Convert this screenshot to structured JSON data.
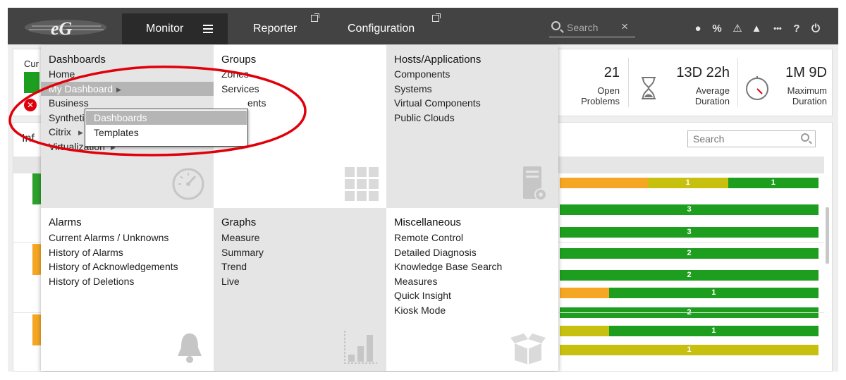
{
  "topbar": {
    "nav": {
      "monitor": "Monitor",
      "reporter": "Reporter",
      "configuration": "Configuration"
    },
    "search_placeholder": "Search",
    "search_clear": "×",
    "icons": [
      "user-icon",
      "link-icon",
      "diagnosis-icon",
      "bell-icon",
      "more-icon",
      "help-icon",
      "power-icon"
    ],
    "icon_glyphs": {
      "user": "●",
      "link": "%",
      "diag": "⚠",
      "bell": "▲",
      "more": "•••",
      "help": "?",
      "power": "⏻"
    }
  },
  "summary": {
    "left_label_partial": "Cur",
    "open_problems": {
      "value": "21",
      "label1": "Open",
      "label2": "Problems"
    },
    "average_duration": {
      "value": "13D 22h",
      "label1": "Average",
      "label2": "Duration"
    },
    "maximum_duration": {
      "value": "1M 9D",
      "label1": "Maximum",
      "label2": "Duration"
    }
  },
  "infra": {
    "title_partial": "Inf",
    "search_placeholder": "Search",
    "rows": [
      {
        "dot_color": "#2ca02c",
        "bar": [
          {
            "color": "#f5a623",
            "pct": 34,
            "label": ""
          },
          {
            "color": "#c8c00e",
            "pct": 31,
            "label": "1"
          },
          {
            "color": "#1e9e1e",
            "pct": 35,
            "label": "1"
          }
        ]
      },
      {
        "dot_color": "",
        "bar": [
          {
            "color": "#1e9e1e",
            "pct": 100,
            "label": "3"
          }
        ]
      },
      {
        "dot_color": "#f5a623",
        "bar": [
          {
            "color": "#1e9e1e",
            "pct": 100,
            "label": "3"
          }
        ]
      },
      {
        "dot_color": "",
        "bar": [
          {
            "color": "#1e9e1e",
            "pct": 100,
            "label": "2"
          }
        ]
      },
      {
        "dot_color": "",
        "bar": [
          {
            "color": "#1e9e1e",
            "pct": 100,
            "label": "2"
          }
        ]
      },
      {
        "dot_color": "#f5a623",
        "bar": [
          {
            "color": "#f5a623",
            "pct": 19,
            "label": ""
          },
          {
            "color": "#1e9e1e",
            "pct": 81,
            "label": "1"
          }
        ]
      },
      {
        "dot_color": "",
        "bar": [
          {
            "color": "#1e9e1e",
            "pct": 100,
            "label": "2"
          }
        ]
      },
      {
        "dot_color": "",
        "bar": [
          {
            "color": "#c8c00e",
            "pct": 19,
            "label": ""
          },
          {
            "color": "#1e9e1e",
            "pct": 81,
            "label": "1"
          }
        ]
      },
      {
        "dot_color": "",
        "bar": [
          {
            "color": "#c8c00e",
            "pct": 100,
            "label": "1"
          }
        ]
      }
    ]
  },
  "menu": {
    "dashboards": {
      "title": "Dashboards",
      "items": [
        "Home",
        "My Dashboard",
        "Business",
        "Synthetic",
        "Citrix",
        "Virtualization"
      ]
    },
    "my_dashboard_submenu": [
      "Dashboards",
      "Templates"
    ],
    "groups": {
      "title": "Groups",
      "items": [
        "Zones",
        "Services",
        "Segments"
      ],
      "partial_segments": "ents"
    },
    "hosts": {
      "title": "Hosts/Applications",
      "items": [
        "Components",
        "Systems",
        "Virtual Components",
        "Public Clouds"
      ]
    },
    "alarms": {
      "title": "Alarms",
      "items": [
        "Current Alarms / Unknowns",
        "History of Alarms",
        "History of Acknowledgements",
        "History of Deletions"
      ]
    },
    "graphs": {
      "title": "Graphs",
      "items": [
        "Measure",
        "Summary",
        "Trend",
        "Live"
      ]
    },
    "misc": {
      "title": "Miscellaneous",
      "items": [
        "Remote Control",
        "Detailed Diagnosis",
        "Knowledge Base Search",
        "Measures",
        "Quick Insight",
        "Kiosk Mode"
      ]
    }
  },
  "colors": {
    "accent_red": "#e0000a",
    "green": "#1e9e1e",
    "orange": "#f5a623",
    "yellow": "#c8c00e",
    "topbar": "#434343"
  }
}
